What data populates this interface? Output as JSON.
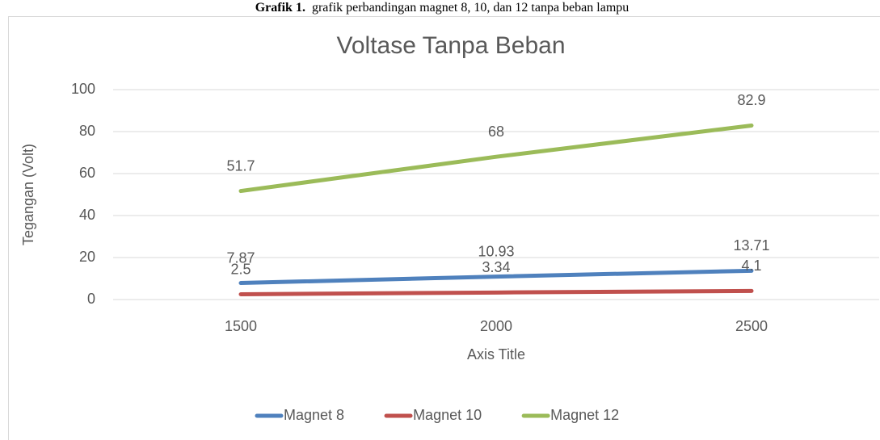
{
  "caption_label": "Grafik 1.",
  "caption": "grafik perbandingan magnet 8, 10, dan 12 tanpa beban lampu",
  "chart_data": {
    "type": "line",
    "title": "Voltase Tanpa Beban",
    "x_label": "Axis Title",
    "y_label": "Tegangan (Volt)",
    "categories": [
      "1500",
      "2000",
      "2500"
    ],
    "series": [
      {
        "name": "Magnet 8",
        "color": "#4f81bd",
        "values": [
          7.87,
          10.93,
          13.71
        ]
      },
      {
        "name": "Magnet 10",
        "color": "#c0504d",
        "values": [
          2.5,
          3.34,
          4.1
        ]
      },
      {
        "name": "Magnet 12",
        "color": "#9bbb59",
        "values": [
          51.7,
          68,
          82.9
        ]
      }
    ],
    "ylim": [
      0,
      100
    ],
    "yticks": [
      0,
      20,
      40,
      60,
      80,
      100
    ],
    "grid": true,
    "legend": "bottom",
    "data_labels": true
  }
}
